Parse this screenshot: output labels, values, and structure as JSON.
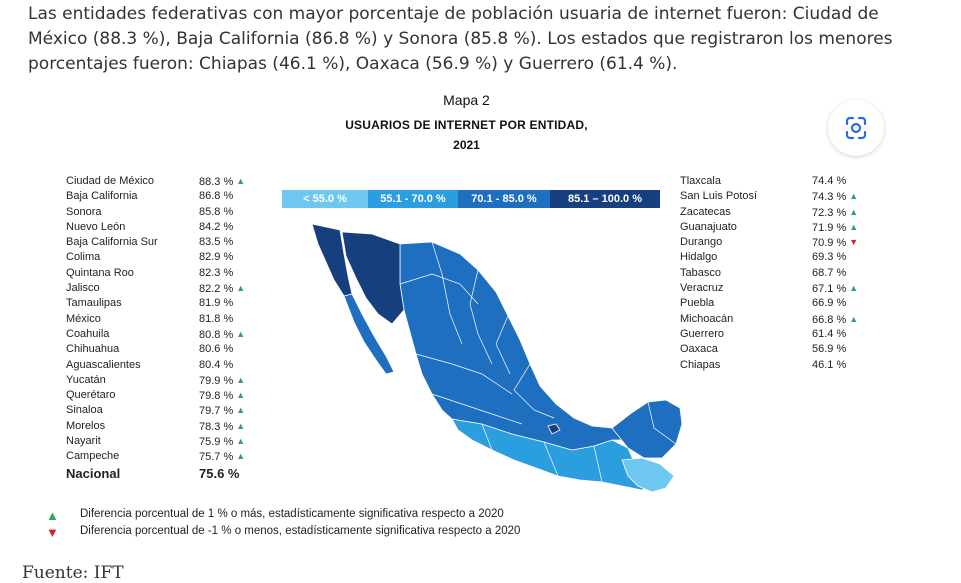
{
  "intro_text": "Las entidades federativas con mayor porcentaje de población usuaria de internet fueron: Ciudad de México (88.3 %), Baja California (86.8 %) y Sonora (85.8 %). Los estados que registraron los menores porcentajes fueron: Chiapas (46.1 %), Oaxaca (56.9 %) y Guerrero (61.4 %).",
  "map": {
    "label": "Mapa 2",
    "title": "USUARIOS DE INTERNET POR ENTIDAD,",
    "year": "2021"
  },
  "legend": [
    {
      "label": "< 55.0 %",
      "color": "#6ec7f0"
    },
    {
      "label": "55.1 - 70.0 %",
      "color": "#2b9ee0"
    },
    {
      "label": "70.1 - 85.0 %",
      "color": "#1f6fc0"
    },
    {
      "label": "85.1 – 100.0 %",
      "color": "#163f7e"
    }
  ],
  "states_left": [
    {
      "name": "Ciudad de México",
      "value": "88.3 %",
      "arrow": "up"
    },
    {
      "name": "Baja California",
      "value": "86.8 %",
      "arrow": ""
    },
    {
      "name": "Sonora",
      "value": "85.8 %",
      "arrow": ""
    },
    {
      "name": "Nuevo León",
      "value": "84.2 %",
      "arrow": ""
    },
    {
      "name": "Baja California Sur",
      "value": "83.5 %",
      "arrow": ""
    },
    {
      "name": "Colima",
      "value": "82.9 %",
      "arrow": ""
    },
    {
      "name": "Quintana Roo",
      "value": "82.3 %",
      "arrow": ""
    },
    {
      "name": "Jalisco",
      "value": "82.2  %",
      "arrow": "up"
    },
    {
      "name": "Tamaulipas",
      "value": "81.9 %",
      "arrow": ""
    },
    {
      "name": "México",
      "value": "81.8 %",
      "arrow": ""
    },
    {
      "name": "Coahuila",
      "value": "80.8 %",
      "arrow": "up"
    },
    {
      "name": "Chihuahua",
      "value": "80.6 %",
      "arrow": ""
    },
    {
      "name": "Aguascalientes",
      "value": "80.4 %",
      "arrow": ""
    },
    {
      "name": "Yucatán",
      "value": "79.9 %",
      "arrow": "up"
    },
    {
      "name": "Querétaro",
      "value": "79.8 %",
      "arrow": "up"
    },
    {
      "name": "Sinaloa",
      "value": "79.7 %",
      "arrow": "up"
    },
    {
      "name": "Morelos",
      "value": "78.3 %",
      "arrow": "up"
    },
    {
      "name": "Nayarit",
      "value": "75.9 %",
      "arrow": "up"
    },
    {
      "name": "Campeche",
      "value": "75.7 %",
      "arrow": "up"
    }
  ],
  "national": {
    "name": "Nacional",
    "value": "75.6 %"
  },
  "states_right": [
    {
      "name": "Tlaxcala",
      "value": "74.4 %",
      "arrow": ""
    },
    {
      "name": "San Luis Potosí",
      "value": "74.3 %",
      "arrow": "up"
    },
    {
      "name": "Zacatecas",
      "value": "72.3 %",
      "arrow": "up"
    },
    {
      "name": "Guanajuato",
      "value": "71.9 %",
      "arrow": "up"
    },
    {
      "name": "Durango",
      "value": "70.9 %",
      "arrow": "down"
    },
    {
      "name": "Hidalgo",
      "value": "69.3 %",
      "arrow": ""
    },
    {
      "name": "Tabasco",
      "value": "68.7 %",
      "arrow": ""
    },
    {
      "name": "Veracruz",
      "value": "67.1 %",
      "arrow": "up"
    },
    {
      "name": "Puebla",
      "value": "66.9 %",
      "arrow": ""
    },
    {
      "name": "Michoacán",
      "value": "66.8 %",
      "arrow": "up"
    },
    {
      "name": "Guerrero",
      "value": "61.4 %",
      "arrow": ""
    },
    {
      "name": "Oaxaca",
      "value": "56.9 %",
      "arrow": ""
    },
    {
      "name": "Chiapas",
      "value": "46.1 %",
      "arrow": ""
    }
  ],
  "notes": [
    {
      "icon": "triangle-up-icon",
      "color": "#2eaa57",
      "text": "Diferencia porcentual de 1 % o más, estadísticamente significativa respecto a 2020"
    },
    {
      "icon": "triangle-down-icon",
      "color": "#d0222a",
      "text": "Diferencia porcentual de -1 % o menos, estadísticamente significativa respecto a 2020"
    }
  ],
  "source": "Fuente: IFT",
  "icons": {
    "lens": "lens-search-icon"
  }
}
